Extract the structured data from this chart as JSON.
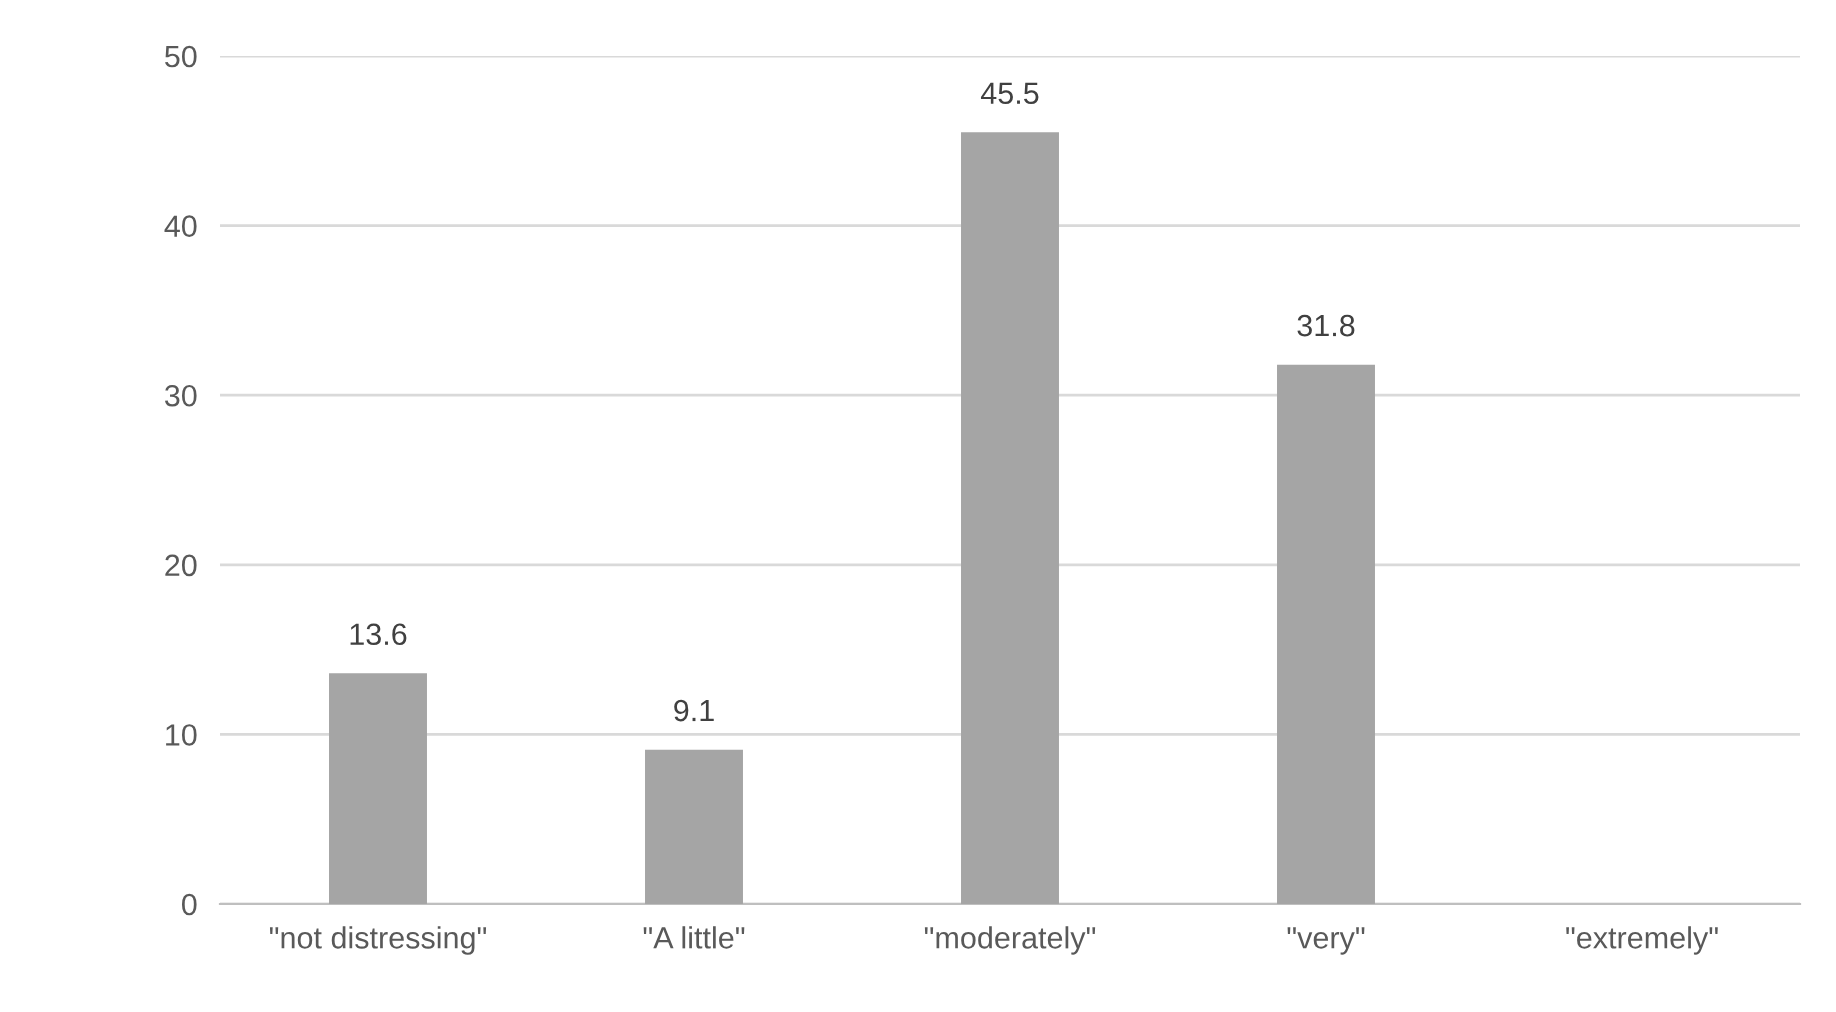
{
  "chart_data": {
    "type": "bar",
    "categories": [
      "\"not distressing\"",
      "\"A little\"",
      "\"moderately\"",
      "\"very\"",
      "\"extremely\""
    ],
    "values": [
      13.6,
      9.1,
      45.5,
      31.8,
      null
    ],
    "value_labels": [
      "13.6",
      "9.1",
      "45.5",
      "31.8",
      null
    ],
    "color": "#a5a5a5",
    "ylim": [
      0,
      50
    ],
    "yticks": [
      0,
      10,
      20,
      30,
      40,
      50
    ],
    "grid": "y",
    "legend": false
  }
}
